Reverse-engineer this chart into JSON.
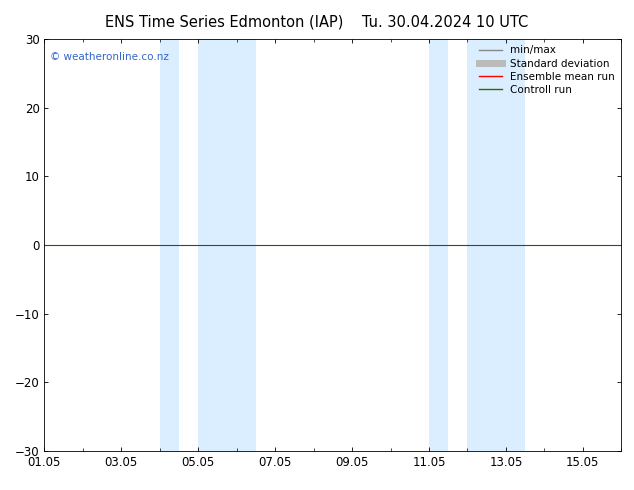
{
  "title_left": "ENS Time Series Edmonton (IAP)",
  "title_right": "Tu. 30.04.2024 10 UTC",
  "ylim": [
    -30,
    30
  ],
  "yticks": [
    -30,
    -20,
    -10,
    0,
    10,
    20,
    30
  ],
  "xlim": [
    0.0,
    15.0
  ],
  "xtick_positions": [
    0,
    2,
    4,
    6,
    8,
    10,
    12,
    14
  ],
  "xtick_labels": [
    "01.05",
    "03.05",
    "05.05",
    "07.05",
    "09.05",
    "11.05",
    "13.05",
    "15.05"
  ],
  "shaded_bands": [
    {
      "xmin": 3.0,
      "xmax": 3.5
    },
    {
      "xmin": 4.0,
      "xmax": 5.5
    },
    {
      "xmin": 10.0,
      "xmax": 10.5
    },
    {
      "xmin": 11.0,
      "xmax": 12.5
    }
  ],
  "shade_color": "#daeeff",
  "zero_line_color": "#2d5a00",
  "copyright_text": "© weatheronline.co.nz",
  "copyright_color": "#3366cc",
  "legend_entries": [
    {
      "label": "min/max",
      "color": "#888888",
      "lw": 1.0
    },
    {
      "label": "Standard deviation",
      "color": "#bbbbbb",
      "lw": 5
    },
    {
      "label": "Ensemble mean run",
      "color": "#ff0000",
      "lw": 1.0
    },
    {
      "label": "Controll run",
      "color": "#336600",
      "lw": 1.0
    }
  ],
  "bg_color": "#ffffff",
  "tick_label_fontsize": 8.5,
  "title_fontsize": 10.5,
  "legend_fontsize": 7.5,
  "fig_width": 6.34,
  "fig_height": 4.9,
  "dpi": 100
}
